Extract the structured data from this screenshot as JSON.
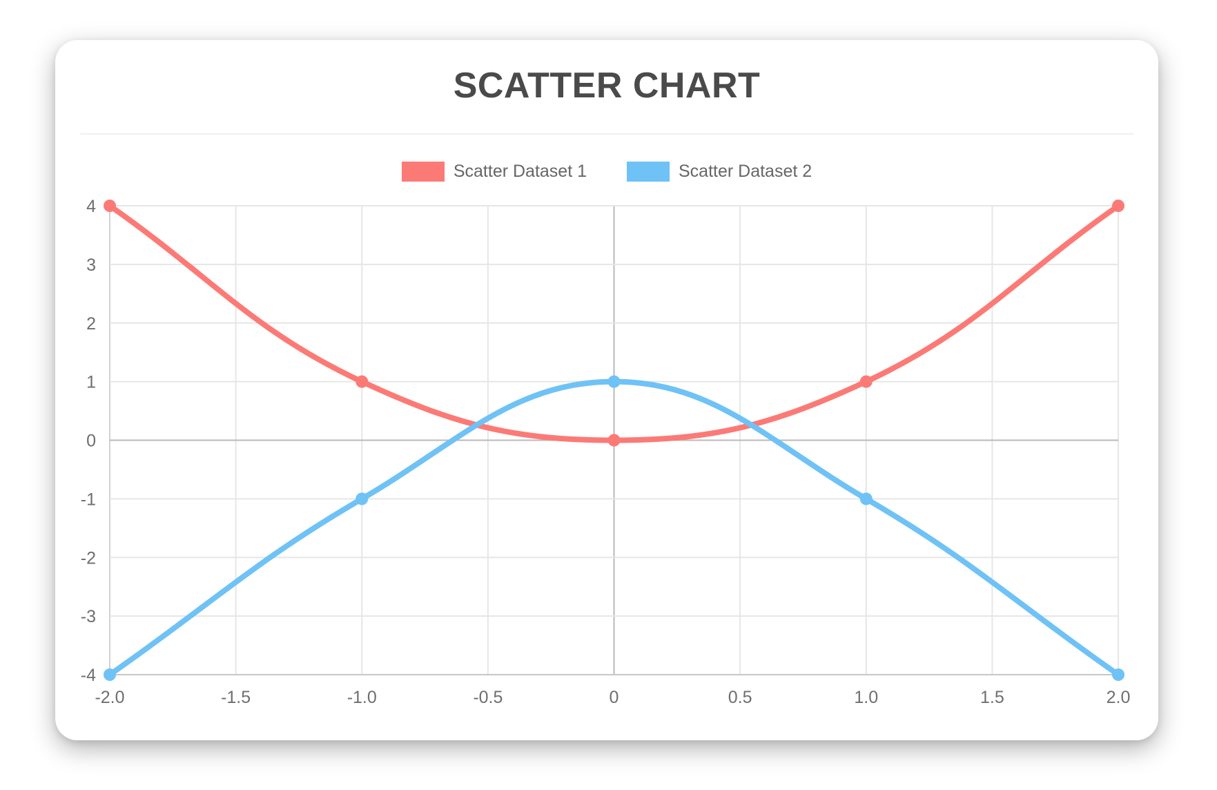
{
  "card": {
    "background": "#ffffff"
  },
  "chart_data": {
    "type": "scatter",
    "title": "SCATTER CHART",
    "xlabel": "",
    "ylabel": "",
    "xlim": [
      -2,
      2
    ],
    "ylim": [
      -4,
      4
    ],
    "grid": true,
    "legend_position": "top",
    "line_tension": 0.4,
    "x_ticks": [
      "-2.0",
      "-1.5",
      "-1.0",
      "-0.5",
      "0",
      "0.5",
      "1.0",
      "1.5",
      "2.0"
    ],
    "x_tick_values": [
      -2,
      -1.5,
      -1,
      -0.5,
      0,
      0.5,
      1,
      1.5,
      2
    ],
    "y_ticks": [
      "4",
      "3",
      "2",
      "1",
      "0",
      "-1",
      "-2",
      "-3",
      "-4"
    ],
    "y_tick_values": [
      4,
      3,
      2,
      1,
      0,
      -1,
      -2,
      -3,
      -4
    ],
    "series": [
      {
        "name": "Scatter Dataset 1",
        "color": "#fc7a76",
        "points": [
          {
            "x": -2,
            "y": 4
          },
          {
            "x": -1,
            "y": 1
          },
          {
            "x": 0,
            "y": 0
          },
          {
            "x": 1,
            "y": 1
          },
          {
            "x": 2,
            "y": 4
          }
        ]
      },
      {
        "name": "Scatter Dataset 2",
        "color": "#6fc2f5",
        "points": [
          {
            "x": -2,
            "y": -4
          },
          {
            "x": -1,
            "y": -1
          },
          {
            "x": 0,
            "y": 1
          },
          {
            "x": 1,
            "y": -1
          },
          {
            "x": 2,
            "y": -4
          }
        ]
      }
    ]
  },
  "colors": {
    "title_text": "#4a4a4a",
    "legend_text": "#666666",
    "tick_text": "#6e6e6e",
    "gridline": "#e6e6e6",
    "zero_line": "#b9b9b9",
    "left_border": "#d2d2d2",
    "bottom_border": "#c7c7c7"
  }
}
